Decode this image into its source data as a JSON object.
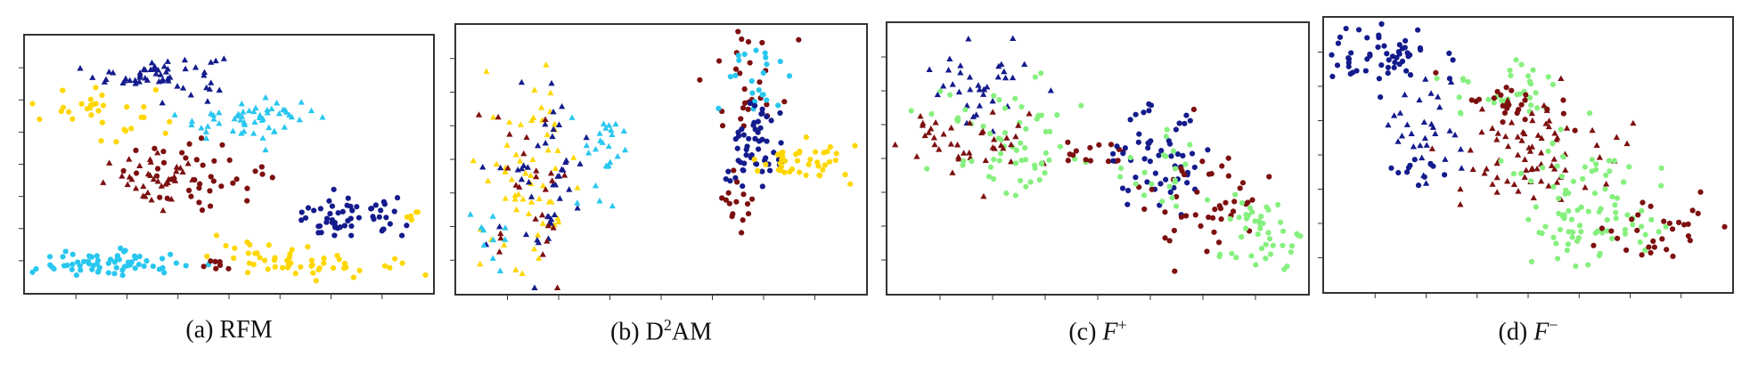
{
  "figure": {
    "colors": {
      "cyan": "#29c7ef",
      "navy": "#141b8c",
      "maroon": "#7d0f0f",
      "yellow": "#ffd700",
      "green": "#86f07e",
      "axis": "#333333"
    },
    "markers": [
      "circle",
      "triangle"
    ]
  },
  "panels": [
    {
      "label": "(a)",
      "name": "RFM"
    },
    {
      "label": "(b)",
      "name": "AM",
      "prefix": "D",
      "sup": "2"
    },
    {
      "label": "(c)",
      "name": "F",
      "sup": "+"
    },
    {
      "label": "(d)",
      "name": "F",
      "sup": "−"
    }
  ],
  "chart_data": [
    {
      "type": "scatter",
      "xlim": [
        0,
        100
      ],
      "ylim": [
        0,
        100
      ],
      "grid": false,
      "clusters": [
        {
          "color": "navy",
          "marker": "triangle",
          "cx": 33,
          "cy": 86,
          "sx": 8,
          "sy": 4,
          "n": 55
        },
        {
          "color": "yellow",
          "marker": "circle",
          "cx": 17,
          "cy": 72,
          "sx": 7,
          "sy": 6,
          "n": 32
        },
        {
          "color": "cyan",
          "marker": "triangle",
          "cx": 55,
          "cy": 68,
          "sx": 9,
          "sy": 4,
          "n": 55
        },
        {
          "color": "maroon",
          "marker": "circle",
          "cx": 42,
          "cy": 47,
          "sx": 9,
          "sy": 6,
          "n": 40
        },
        {
          "color": "maroon",
          "marker": "triangle",
          "cx": 33,
          "cy": 43,
          "sx": 7,
          "sy": 5,
          "n": 35
        },
        {
          "color": "navy",
          "marker": "circle",
          "cx": 80,
          "cy": 28,
          "sx": 7,
          "sy": 4,
          "n": 55
        },
        {
          "color": "yellow",
          "marker": "circle",
          "cx": 96,
          "cy": 30,
          "sx": 1.5,
          "sy": 2,
          "n": 5
        },
        {
          "color": "yellow",
          "marker": "circle",
          "cx": 68,
          "cy": 12,
          "sx": 11,
          "sy": 3.5,
          "n": 55
        },
        {
          "color": "cyan",
          "marker": "circle",
          "cx": 20,
          "cy": 10,
          "sx": 9,
          "sy": 2.5,
          "n": 65
        },
        {
          "color": "maroon",
          "marker": "circle",
          "cx": 47,
          "cy": 9,
          "sx": 2,
          "sy": 1.5,
          "n": 7
        }
      ]
    },
    {
      "type": "scatter",
      "xlim": [
        0,
        100
      ],
      "ylim": [
        0,
        100
      ],
      "grid": false,
      "clusters": [
        {
          "color": "yellow",
          "marker": "triangle",
          "cx": 18,
          "cy": 44,
          "sx": 6,
          "sy": 18,
          "n": 60
        },
        {
          "color": "navy",
          "marker": "triangle",
          "cx": 20,
          "cy": 42,
          "sx": 6,
          "sy": 18,
          "n": 45
        },
        {
          "color": "maroon",
          "marker": "triangle",
          "cx": 18,
          "cy": 42,
          "sx": 5,
          "sy": 14,
          "n": 25
        },
        {
          "color": "cyan",
          "marker": "triangle",
          "cx": 36,
          "cy": 53,
          "sx": 4,
          "sy": 11,
          "n": 25
        },
        {
          "color": "cyan",
          "marker": "triangle",
          "cx": 8,
          "cy": 23,
          "sx": 3,
          "sy": 6,
          "n": 10
        },
        {
          "color": "maroon",
          "marker": "circle",
          "cx": 72,
          "cy": 79,
          "sx": 4,
          "sy": 10,
          "n": 28
        },
        {
          "color": "cyan",
          "marker": "circle",
          "cx": 72,
          "cy": 83,
          "sx": 4,
          "sy": 9,
          "n": 22
        },
        {
          "color": "navy",
          "marker": "circle",
          "cx": 72,
          "cy": 53,
          "sx": 4,
          "sy": 9,
          "n": 55
        },
        {
          "color": "yellow",
          "marker": "circle",
          "cx": 85,
          "cy": 49,
          "sx": 6,
          "sy": 4,
          "n": 42
        },
        {
          "color": "maroon",
          "marker": "circle",
          "cx": 69,
          "cy": 34,
          "sx": 2.5,
          "sy": 6,
          "n": 15
        }
      ]
    },
    {
      "type": "scatter",
      "xlim": [
        0,
        100
      ],
      "ylim": [
        0,
        100
      ],
      "grid": false,
      "clusters": [
        {
          "color": "navy",
          "marker": "triangle",
          "cx": 23,
          "cy": 80,
          "sx": 7,
          "sy": 8,
          "n": 35
        },
        {
          "color": "green",
          "marker": "circle",
          "cx": 26,
          "cy": 66,
          "sx": 9,
          "sy": 8,
          "n": 30
        },
        {
          "color": "maroon",
          "marker": "triangle",
          "cx": 20,
          "cy": 55,
          "sx": 9,
          "sy": 6,
          "n": 40
        },
        {
          "color": "green",
          "marker": "circle",
          "cx": 30,
          "cy": 49,
          "sx": 10,
          "sy": 6,
          "n": 35
        },
        {
          "color": "maroon",
          "marker": "circle",
          "cx": 50,
          "cy": 51,
          "sx": 6,
          "sy": 3,
          "n": 15
        },
        {
          "color": "navy",
          "marker": "circle",
          "cx": 65,
          "cy": 51,
          "sx": 6,
          "sy": 11,
          "n": 55
        },
        {
          "color": "maroon",
          "marker": "circle",
          "cx": 77,
          "cy": 34,
          "sx": 7,
          "sy": 10,
          "n": 45
        },
        {
          "color": "green",
          "marker": "circle",
          "cx": 90,
          "cy": 22,
          "sx": 5,
          "sy": 9,
          "n": 45
        },
        {
          "color": "green",
          "marker": "circle",
          "cx": 67,
          "cy": 45,
          "sx": 6,
          "sy": 8,
          "n": 20
        }
      ]
    },
    {
      "type": "scatter",
      "xlim": [
        0,
        100
      ],
      "ylim": [
        0,
        100
      ],
      "grid": false,
      "clusters": [
        {
          "color": "navy",
          "marker": "circle",
          "cx": 14,
          "cy": 87,
          "sx": 7,
          "sy": 6,
          "n": 55
        },
        {
          "color": "navy",
          "marker": "triangle",
          "cx": 26,
          "cy": 58,
          "sx": 5,
          "sy": 12,
          "n": 30
        },
        {
          "color": "navy",
          "marker": "circle",
          "cx": 21,
          "cy": 43,
          "sx": 5,
          "sy": 3,
          "n": 12
        },
        {
          "color": "green",
          "marker": "circle",
          "cx": 45,
          "cy": 74,
          "sx": 9,
          "sy": 6,
          "n": 35
        },
        {
          "color": "maroon",
          "marker": "circle",
          "cx": 47,
          "cy": 70,
          "sx": 7,
          "sy": 5,
          "n": 25
        },
        {
          "color": "maroon",
          "marker": "triangle",
          "cx": 52,
          "cy": 52,
          "sx": 11,
          "sy": 10,
          "n": 75
        },
        {
          "color": "green",
          "marker": "circle",
          "cx": 65,
          "cy": 26,
          "sx": 10,
          "sy": 9,
          "n": 70
        },
        {
          "color": "maroon",
          "marker": "circle",
          "cx": 84,
          "cy": 23,
          "sx": 8,
          "sy": 7,
          "n": 30
        },
        {
          "color": "green",
          "marker": "circle",
          "cx": 60,
          "cy": 44,
          "sx": 9,
          "sy": 5,
          "n": 25
        }
      ]
    }
  ]
}
